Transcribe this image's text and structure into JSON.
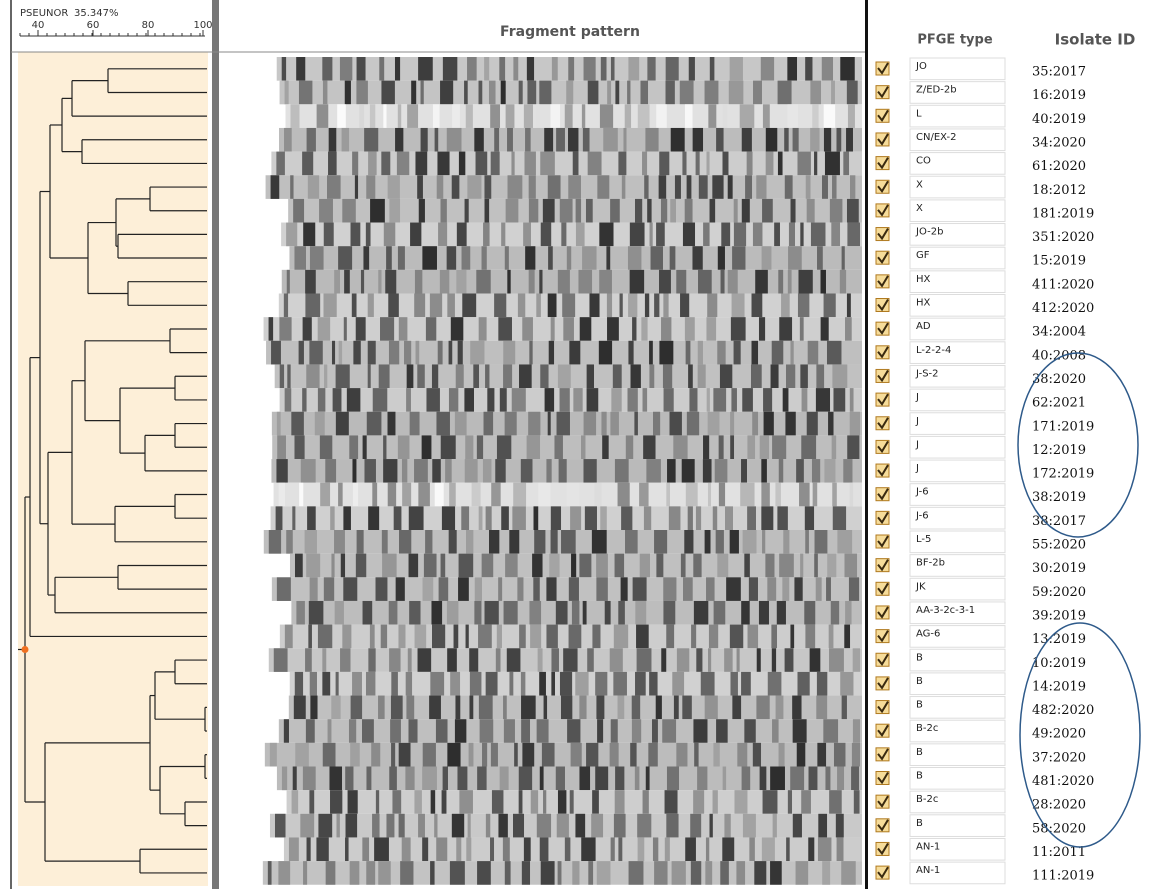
{
  "header": {
    "dataset": "PSEUNOR",
    "similarity": "35.347%",
    "scale_ticks": [
      40,
      60,
      80,
      100
    ],
    "gel_title": "Fragment pattern",
    "col_type": "PFGE type",
    "col_id": "Isolate ID"
  },
  "rows": [
    {
      "type": "JO",
      "id": "35:2017"
    },
    {
      "type": "Z/ED-2b",
      "id": "16:2019"
    },
    {
      "type": "L",
      "id": "40:2019"
    },
    {
      "type": "CN/EX-2",
      "id": "34:2020"
    },
    {
      "type": "CO",
      "id": "61:2020"
    },
    {
      "type": "X",
      "id": "18:2012"
    },
    {
      "type": "X",
      "id": "181:2019"
    },
    {
      "type": "JO-2b",
      "id": "351:2020"
    },
    {
      "type": "GF",
      "id": "15:2019"
    },
    {
      "type": "HX",
      "id": "411:2020"
    },
    {
      "type": "HX",
      "id": "412:2020"
    },
    {
      "type": "AD",
      "id": "34:2004"
    },
    {
      "type": "L-2-2-4",
      "id": "40:2008"
    },
    {
      "type": "J-S-2",
      "id": "38:2020"
    },
    {
      "type": "J",
      "id": "62:2021"
    },
    {
      "type": "J",
      "id": "171:2019"
    },
    {
      "type": "J",
      "id": "12:2019"
    },
    {
      "type": "J",
      "id": "172:2019"
    },
    {
      "type": "J-6",
      "id": "38:2019"
    },
    {
      "type": "J-6",
      "id": "38:2017"
    },
    {
      "type": "L-5",
      "id": "55:2020"
    },
    {
      "type": "BF-2b",
      "id": "30:2019"
    },
    {
      "type": "JK",
      "id": "59:2020"
    },
    {
      "type": "AA-3-2c-3-1",
      "id": "39:2019"
    },
    {
      "type": "AG-6",
      "id": "13:2019"
    },
    {
      "type": "B",
      "id": "10:2019"
    },
    {
      "type": "B",
      "id": "14:2019"
    },
    {
      "type": "B",
      "id": "482:2020"
    },
    {
      "type": "B-2c",
      "id": "49:2020"
    },
    {
      "type": "B",
      "id": "37:2020"
    },
    {
      "type": "B",
      "id": "481:2020"
    },
    {
      "type": "B-2c",
      "id": "28:2020"
    },
    {
      "type": "B",
      "id": "58:2020"
    },
    {
      "type": "AN-1",
      "id": "11:2011"
    },
    {
      "type": "AN-1",
      "id": "111:2019"
    }
  ]
}
